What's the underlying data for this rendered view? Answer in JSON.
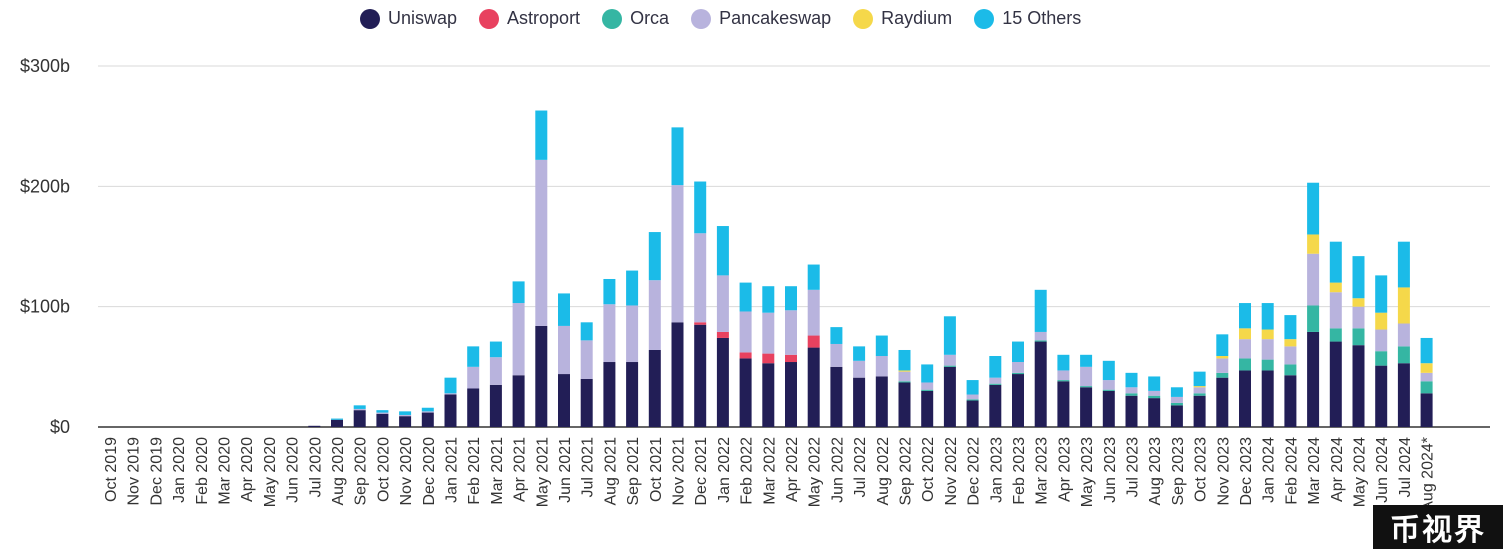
{
  "chart_data": {
    "type": "bar",
    "stacked": true,
    "title": "",
    "xlabel": "",
    "ylabel": "",
    "ylim": [
      0,
      300
    ],
    "y_ticks": [
      "$0",
      "$100b",
      "$200b",
      "$300b"
    ],
    "y_tick_values": [
      0,
      100,
      200,
      300
    ],
    "grid": true,
    "legend_position": "top",
    "categories": [
      "Oct 2019",
      "Nov 2019",
      "Dec 2019",
      "Jan 2020",
      "Feb 2020",
      "Mar 2020",
      "Apr 2020",
      "May 2020",
      "Jun 2020",
      "Jul 2020",
      "Aug 2020",
      "Sep 2020",
      "Oct 2020",
      "Nov 2020",
      "Dec 2020",
      "Jan 2021",
      "Feb 2021",
      "Mar 2021",
      "Apr 2021",
      "May 2021",
      "Jun 2021",
      "Jul 2021",
      "Aug 2021",
      "Sep 2021",
      "Oct 2021",
      "Nov 2021",
      "Dec 2021",
      "Jan 2022",
      "Feb 2022",
      "Mar 2022",
      "Apr 2022",
      "May 2022",
      "Jun 2022",
      "Jul 2022",
      "Aug 2022",
      "Sep 2022",
      "Oct 2022",
      "Nov 2022",
      "Dec 2022",
      "Jan 2023",
      "Feb 2023",
      "Mar 2023",
      "Apr 2023",
      "May 2023",
      "Jun 2023",
      "Jul 2023",
      "Aug 2023",
      "Sep 2023",
      "Oct 2023",
      "Nov 2023",
      "Dec 2023",
      "Jan 2024",
      "Feb 2024",
      "Mar 2024",
      "Apr 2024",
      "May 2024",
      "Jun 2024",
      "Jul 2024",
      "Aug 2024*"
    ],
    "series": [
      {
        "name": "Uniswap",
        "color": "#221e56",
        "values": [
          0,
          0,
          0,
          0,
          0,
          0,
          0,
          0,
          0,
          1,
          6,
          14,
          11,
          9,
          12,
          27,
          32,
          35,
          43,
          84,
          44,
          40,
          54,
          54,
          64,
          87,
          85,
          74,
          57,
          53,
          54,
          66,
          50,
          41,
          42,
          37,
          30,
          50,
          22,
          35,
          44,
          71,
          38,
          33,
          30,
          26,
          24,
          18,
          26,
          41,
          47,
          47,
          43,
          79,
          71,
          68,
          51,
          53,
          28
        ]
      },
      {
        "name": "Astroport",
        "color": "#e8415f",
        "values": [
          0,
          0,
          0,
          0,
          0,
          0,
          0,
          0,
          0,
          0,
          0,
          0,
          0,
          0,
          0,
          0,
          0,
          0,
          0,
          0,
          0,
          0,
          0,
          0,
          0,
          0,
          2,
          5,
          5,
          8,
          6,
          10,
          0,
          0,
          0,
          0,
          0,
          0,
          0,
          0,
          0,
          0,
          0,
          0,
          0,
          0,
          0,
          0,
          0,
          0,
          0,
          0,
          0,
          0,
          0,
          0,
          0,
          0,
          0
        ]
      },
      {
        "name": "Orca",
        "color": "#35b6a3",
        "values": [
          0,
          0,
          0,
          0,
          0,
          0,
          0,
          0,
          0,
          0,
          0,
          0,
          0,
          0,
          0,
          0,
          0,
          0,
          0,
          0,
          0,
          0,
          0,
          0,
          0,
          0,
          0,
          0,
          0,
          0,
          0,
          0,
          0,
          0,
          0,
          1,
          1,
          1,
          1,
          1,
          1,
          1,
          1,
          1,
          1,
          2,
          2,
          2,
          2,
          4,
          10,
          9,
          9,
          22,
          11,
          14,
          12,
          14,
          10
        ]
      },
      {
        "name": "Pancakeswap",
        "color": "#b8b3dd",
        "values": [
          0,
          0,
          0,
          0,
          0,
          0,
          0,
          0,
          0,
          0,
          0,
          1,
          1,
          1,
          1,
          1,
          18,
          23,
          60,
          138,
          40,
          32,
          48,
          47,
          58,
          114,
          74,
          47,
          34,
          34,
          37,
          38,
          19,
          14,
          17,
          8,
          6,
          9,
          4,
          5,
          9,
          7,
          8,
          16,
          8,
          5,
          4,
          5,
          5,
          12,
          16,
          17,
          15,
          43,
          30,
          18,
          18,
          19,
          7
        ]
      },
      {
        "name": "Raydium",
        "color": "#f5d84a",
        "values": [
          0,
          0,
          0,
          0,
          0,
          0,
          0,
          0,
          0,
          0,
          0,
          0,
          0,
          0,
          0,
          0,
          0,
          0,
          0,
          0,
          0,
          0,
          0,
          0,
          0,
          0,
          0,
          0,
          0,
          0,
          0,
          0,
          0,
          0,
          0,
          1,
          0,
          0,
          0,
          0,
          0,
          0,
          0,
          0,
          0,
          0,
          0,
          0,
          1,
          2,
          9,
          8,
          6,
          16,
          8,
          7,
          14,
          30,
          8
        ]
      },
      {
        "name": "15 Others",
        "color": "#1bbbe8",
        "values": [
          0,
          0,
          0,
          0,
          0,
          0,
          0,
          0,
          0,
          0,
          1,
          3,
          2,
          3,
          3,
          13,
          17,
          13,
          18,
          41,
          27,
          15,
          21,
          29,
          40,
          48,
          43,
          41,
          24,
          22,
          20,
          21,
          14,
          12,
          17,
          17,
          15,
          32,
          12,
          18,
          17,
          35,
          13,
          10,
          16,
          12,
          12,
          8,
          12,
          18,
          21,
          22,
          20,
          43,
          34,
          35,
          31,
          38,
          21
        ]
      }
    ]
  },
  "watermark": "币视界"
}
